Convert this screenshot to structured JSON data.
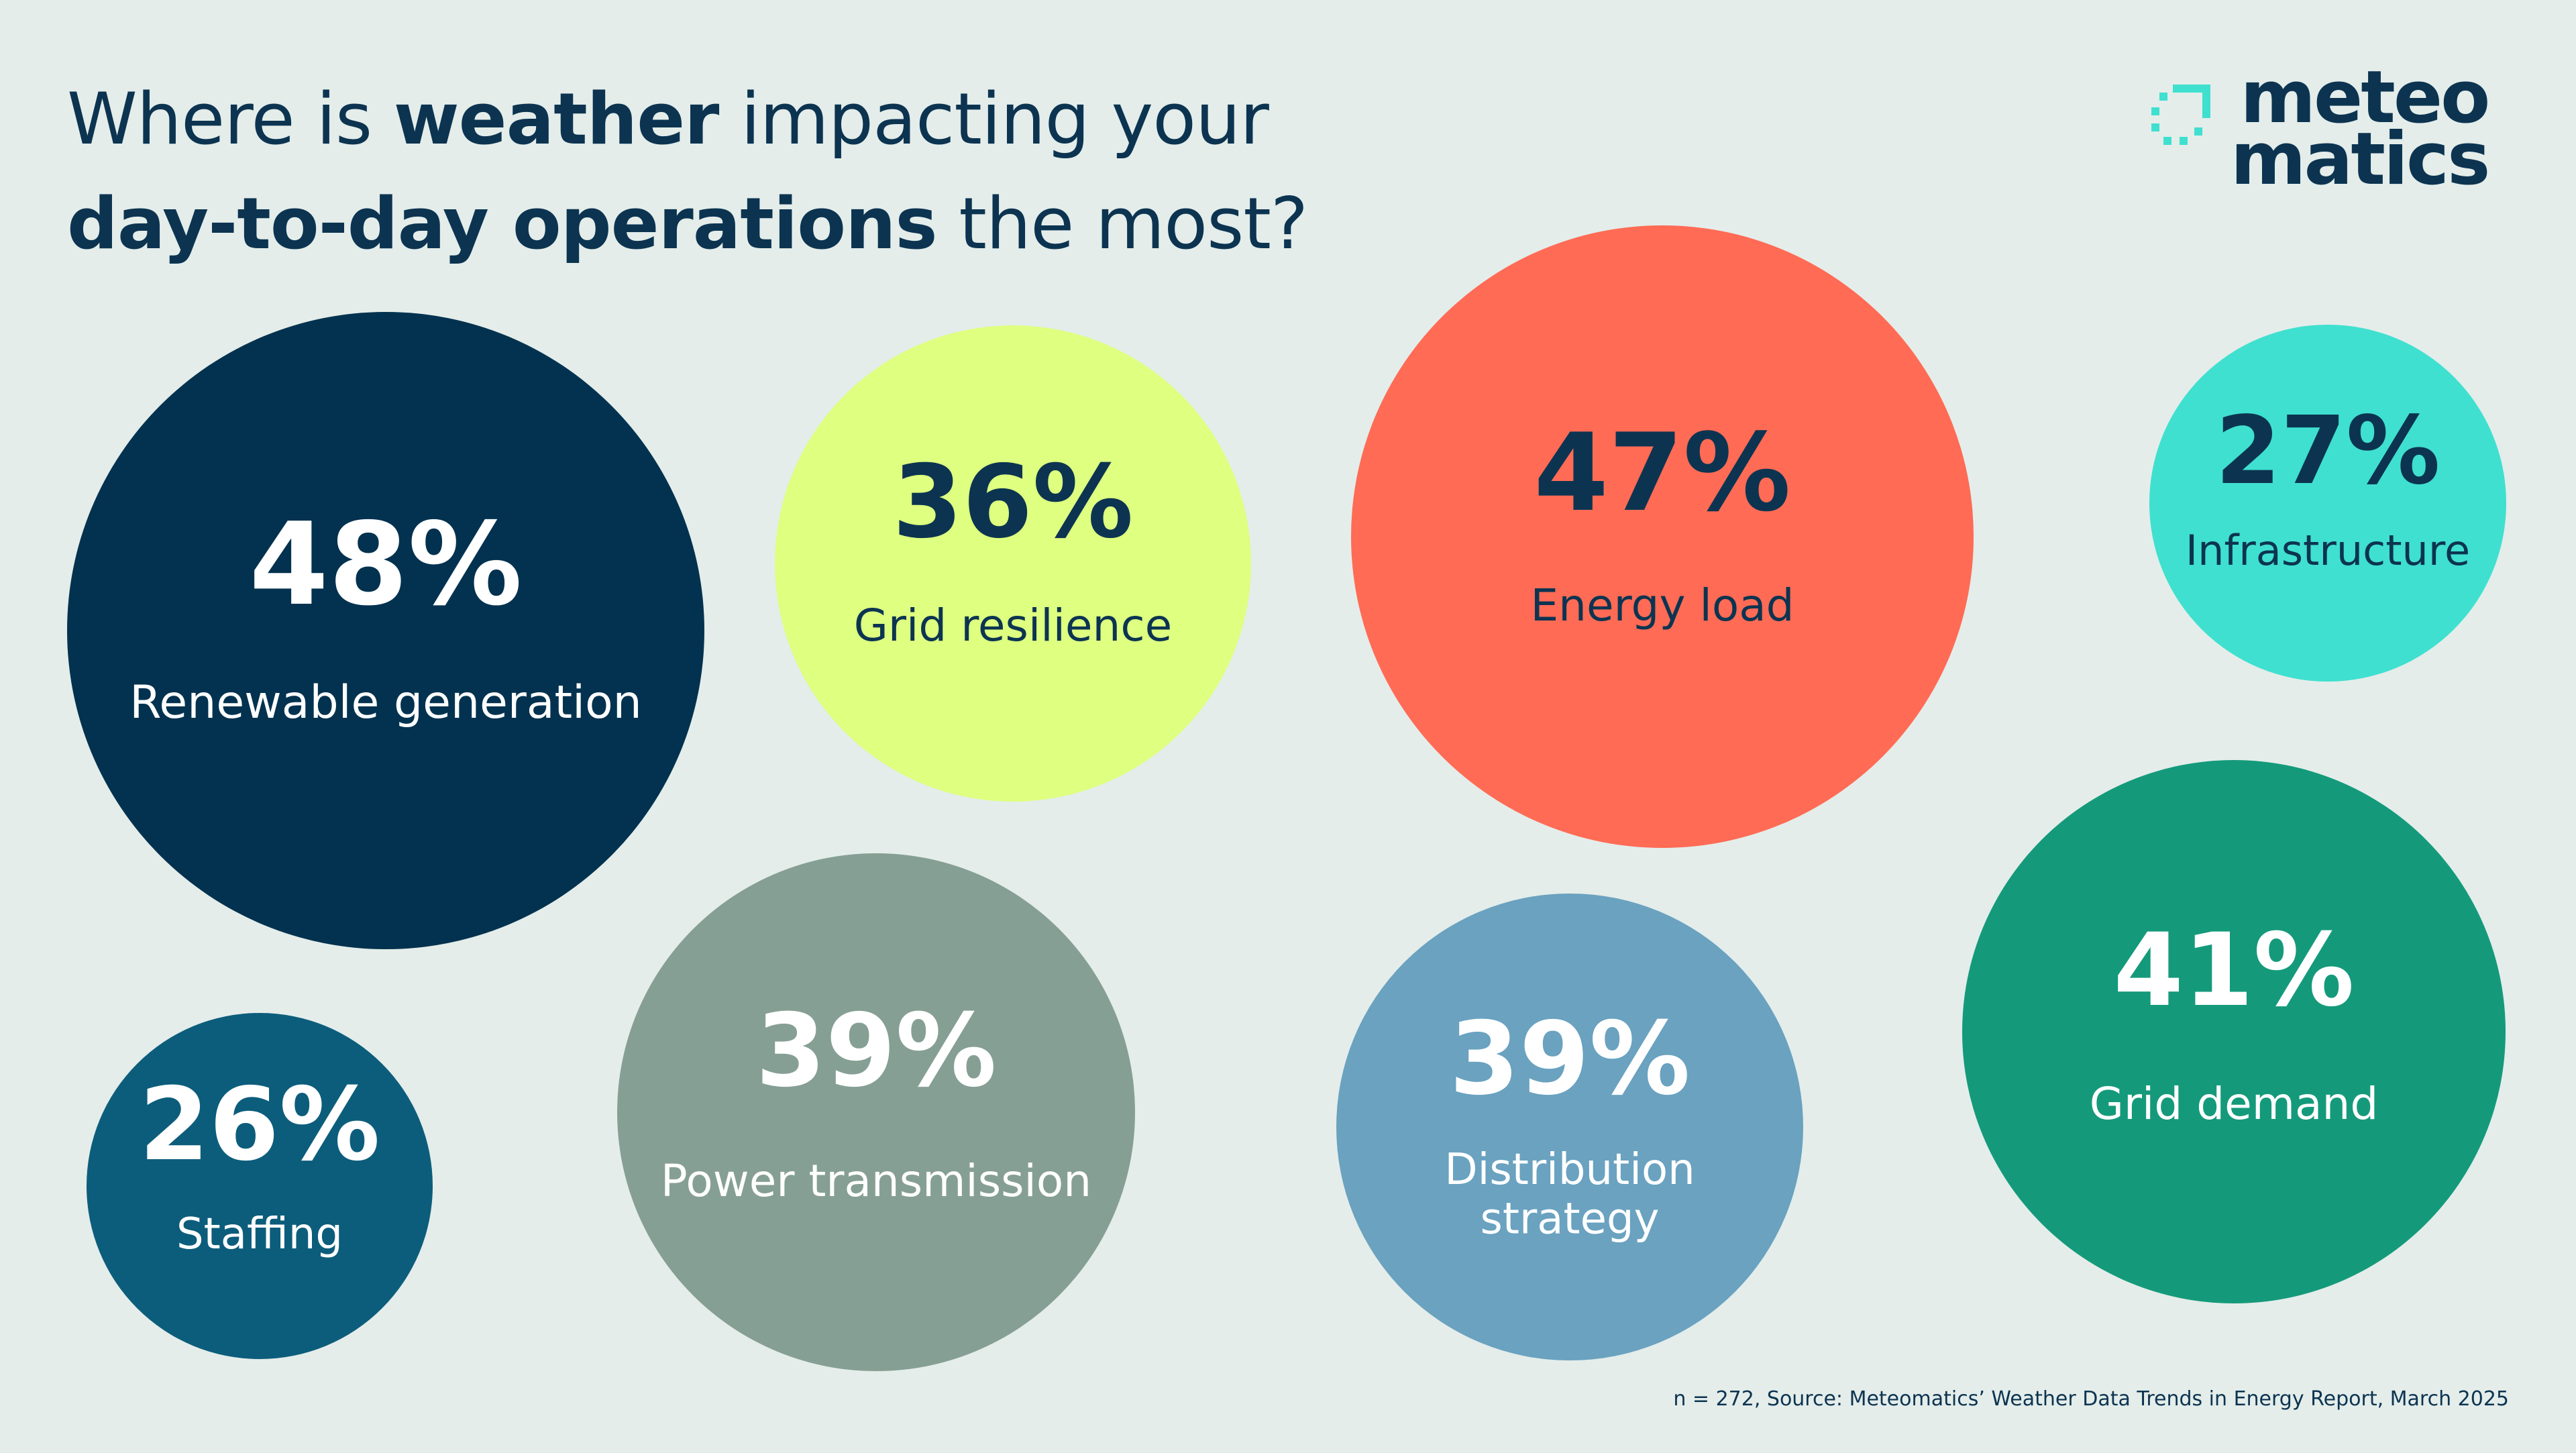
{
  "title": {
    "line1": [
      {
        "text": "Where is ",
        "bold": false
      },
      {
        "text": "weather",
        "bold": true
      },
      {
        "text": " impacting your",
        "bold": false
      }
    ],
    "line2": [
      {
        "text": "day-to-day operations",
        "bold": true
      },
      {
        "text": " the most?",
        "bold": false
      }
    ]
  },
  "logo": {
    "line1": "meteo",
    "line2": "matics",
    "mark_color": "#3fe0cf",
    "text_color": "#0c3451"
  },
  "chart_data": {
    "type": "bubble",
    "unit": "%",
    "series": [
      {
        "label": [
          "Renewable generation"
        ],
        "value": 48,
        "color": "#02324f",
        "text_color": "#ffffff"
      },
      {
        "label": [
          "Grid resilience"
        ],
        "value": 36,
        "color": "#deff80",
        "text_color": "#0c3451"
      },
      {
        "label": [
          "Energy load"
        ],
        "value": 47,
        "color": "#ff6b55",
        "text_color": "#0c3451"
      },
      {
        "label": [
          "Infrastructure"
        ],
        "value": 27,
        "color": "#3fe0cf",
        "text_color": "#0c3451"
      },
      {
        "label": [
          "Staffing"
        ],
        "value": 26,
        "color": "#0c5d7b",
        "text_color": "#ffffff"
      },
      {
        "label": [
          "Power transmission"
        ],
        "value": 39,
        "color": "#869f94",
        "text_color": "#ffffff"
      },
      {
        "label": [
          "Distribution",
          "strategy"
        ],
        "value": 39,
        "color": "#6aa2c0",
        "text_color": "#ffffff"
      },
      {
        "label": [
          "Grid demand"
        ],
        "value": 41,
        "color": "#149a7b",
        "text_color": "#ffffff"
      }
    ]
  },
  "footnote": "n = 272, Source: Meteomatics’ Weather Data Trends in Energy Report, March 2025"
}
